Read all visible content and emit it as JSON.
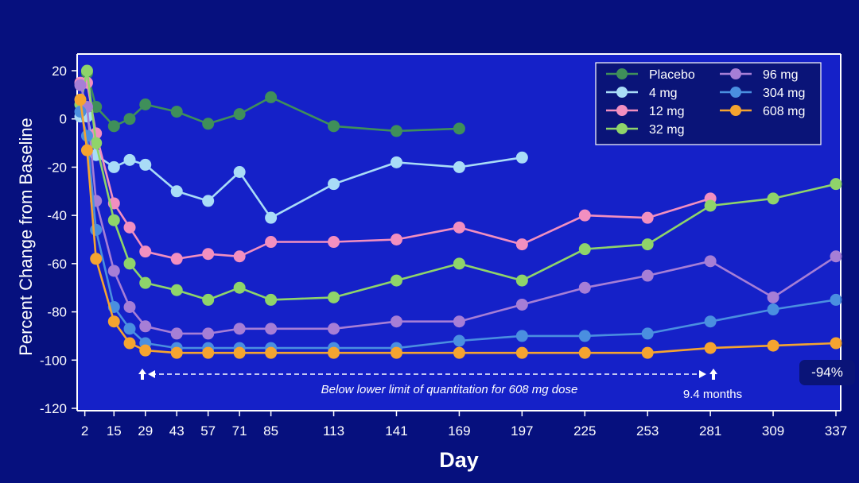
{
  "chart_data": {
    "type": "line",
    "xlabel": "Day",
    "ylabel": "Percent Change from Baseline",
    "xlim": [
      0,
      337
    ],
    "ylim": [
      -120,
      25
    ],
    "xticks": [
      2,
      15,
      29,
      43,
      57,
      71,
      85,
      113,
      141,
      169,
      197,
      225,
      253,
      281,
      309,
      337
    ],
    "yticks": [
      20,
      0,
      -20,
      -40,
      -60,
      -80,
      -100,
      -120
    ],
    "grid": false,
    "legend_position": "top-right",
    "series": [
      {
        "name": "Placebo",
        "color": "#3f8f5a",
        "x": [
          0,
          3,
          7,
          15,
          22,
          29,
          43,
          57,
          71,
          85,
          113,
          141,
          169
        ],
        "y": [
          6,
          19,
          5,
          -3,
          0,
          6,
          3,
          -2,
          2,
          9,
          -3,
          -5,
          -4
        ]
      },
      {
        "name": "4 mg",
        "color": "#a9dcf7",
        "x": [
          0,
          3,
          7,
          15,
          22,
          29,
          43,
          57,
          71,
          85,
          113,
          141,
          169,
          197
        ],
        "y": [
          1,
          1,
          -15,
          -20,
          -17,
          -19,
          -30,
          -34,
          -22,
          -41,
          -27,
          -18,
          -20,
          -16
        ]
      },
      {
        "name": "12 mg",
        "color": "#f28fc0",
        "x": [
          0,
          3,
          7,
          15,
          22,
          29,
          43,
          57,
          71,
          85,
          113,
          141,
          169,
          197,
          225,
          253,
          281
        ],
        "y": [
          15,
          15,
          -6,
          -35,
          -45,
          -55,
          -58,
          -56,
          -57,
          -51,
          -51,
          -50,
          -45,
          -52,
          -40,
          -41,
          -33
        ]
      },
      {
        "name": "32 mg",
        "color": "#8fd46a",
        "x": [
          0,
          3,
          7,
          15,
          22,
          29,
          43,
          57,
          71,
          85,
          113,
          141,
          169,
          197,
          225,
          253,
          281,
          309,
          337
        ],
        "y": [
          6,
          20,
          -10,
          -42,
          -60,
          -68,
          -71,
          -75,
          -70,
          -75,
          -74,
          -67,
          -60,
          -67,
          -54,
          -52,
          -36,
          -33,
          -27
        ]
      },
      {
        "name": "96 mg",
        "color": "#a67ed6",
        "x": [
          0,
          3,
          7,
          15,
          22,
          29,
          43,
          57,
          71,
          85,
          113,
          141,
          169,
          197,
          225,
          253,
          281,
          309,
          337
        ],
        "y": [
          14,
          5,
          -34,
          -63,
          -78,
          -86,
          -89,
          -89,
          -87,
          -87,
          -87,
          -84,
          -84,
          -77,
          -70,
          -65,
          -59,
          -74,
          -57
        ]
      },
      {
        "name": "304 mg",
        "color": "#4a8fe0",
        "x": [
          0,
          3,
          7,
          15,
          22,
          29,
          43,
          57,
          71,
          85,
          113,
          141,
          169,
          197,
          225,
          253,
          281,
          309,
          337
        ],
        "y": [
          3,
          -7,
          -46,
          -78,
          -87,
          -93,
          -95,
          -95,
          -95,
          -95,
          -95,
          -95,
          -92,
          -90,
          -90,
          -89,
          -84,
          -79,
          -75
        ]
      },
      {
        "name": "608 mg",
        "color": "#f5a430",
        "x": [
          0,
          3,
          7,
          15,
          22,
          29,
          43,
          57,
          71,
          85,
          113,
          141,
          169,
          197,
          225,
          253,
          281,
          309,
          337
        ],
        "y": [
          8,
          -13,
          -58,
          -84,
          -93,
          -96,
          -97,
          -97,
          -97,
          -97,
          -97,
          -97,
          -97,
          -97,
          -97,
          -97,
          -95,
          -94,
          -93
        ]
      }
    ],
    "annotations": {
      "below_llq": "Below lower limit of quantitation for 608 mg dose",
      "months": "9.4 months",
      "final_value": "-94%"
    }
  },
  "colors": {
    "background": "#06107e",
    "plot_area": "#1521c8",
    "frame": "#ffffff",
    "legend_bg": "#0a1478"
  }
}
